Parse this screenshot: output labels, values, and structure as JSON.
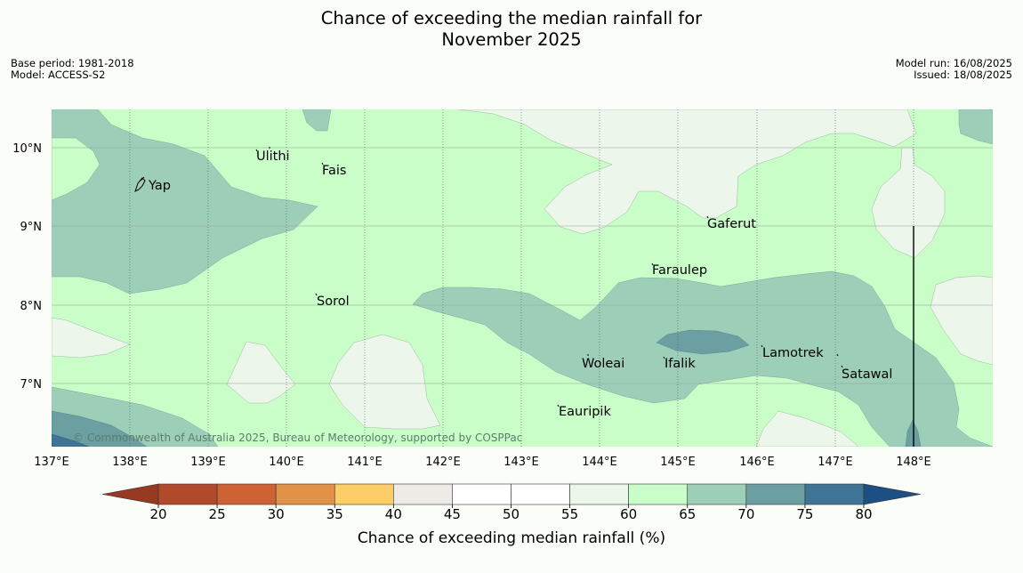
{
  "title": {
    "line1": "Chance of exceeding the median rainfall for",
    "line2": "November 2025"
  },
  "meta_left": {
    "base_period": "Base period: 1981-2018",
    "model": "Model: ACCESS-S2"
  },
  "meta_right": {
    "model_run": "Model run: 16/08/2025",
    "issued": "Issued: 18/08/2025"
  },
  "map": {
    "lon_labels": [
      "137°E",
      "138°E",
      "139°E",
      "140°E",
      "141°E",
      "142°E",
      "143°E",
      "144°E",
      "145°E",
      "146°E",
      "147°E",
      "148°E"
    ],
    "lat_labels": [
      "10°N",
      "9°N",
      "8°N",
      "7°N"
    ],
    "places": [
      {
        "name": "Ulithi"
      },
      {
        "name": "Fais"
      },
      {
        "name": "Yap"
      },
      {
        "name": "Gaferut"
      },
      {
        "name": "Faraulep"
      },
      {
        "name": "Sorol"
      },
      {
        "name": "Woleai"
      },
      {
        "name": "Ifalik"
      },
      {
        "name": "Lamotrek"
      },
      {
        "name": "Satawal"
      },
      {
        "name": "Eauripik"
      }
    ],
    "credit": "© Commonwealth of Australia 2025, Bureau of Meteorology, supported by COSPPac"
  },
  "colorbar": {
    "ticks": [
      "20",
      "25",
      "30",
      "35",
      "40",
      "45",
      "50",
      "55",
      "60",
      "65",
      "70",
      "75",
      "80"
    ],
    "label": "Chance of exceeding median rainfall (%)",
    "colors": {
      "below20": "#963a22",
      "b20_25": "#b04a2a",
      "b25_30": "#cf6233",
      "b30_35": "#e29246",
      "b35_40": "#fdcd68",
      "b40_45": "#ecebe6",
      "b45_50": "#ffffff",
      "b50_55": "#ffffff",
      "b55_60": "#ecf6ea",
      "b60_65": "#c9fec8",
      "b65_70": "#9dcfb8",
      "b70_75": "#6b9fa2",
      "b75_80": "#3f7497",
      "above80": "#1d4f84"
    }
  }
}
